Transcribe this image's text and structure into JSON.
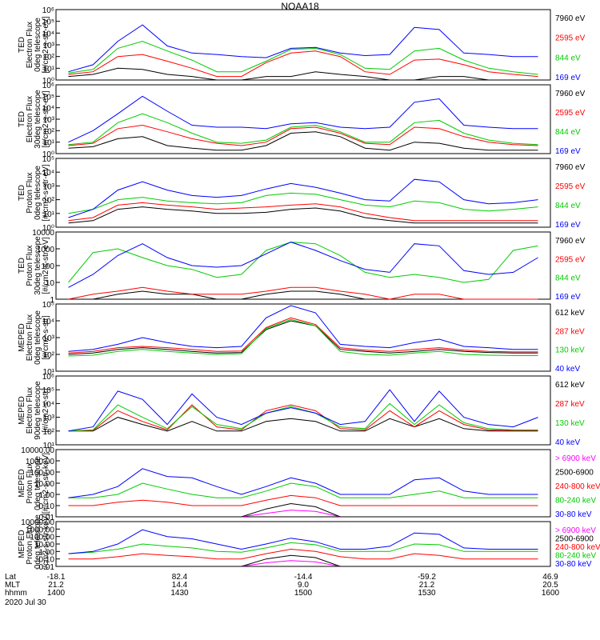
{
  "title": "NOAA18",
  "date_label": "2020 Jul 30",
  "bottom_axis": {
    "row_labels": [
      "Lat",
      "MLT",
      "hhmm"
    ],
    "ticks": [
      {
        "lat": "-18.1",
        "mlt": "21.2",
        "hhmm": "1400"
      },
      {
        "lat": "82.4",
        "mlt": "14.4",
        "hhmm": "1430"
      },
      {
        "lat": "-14.4",
        "mlt": "9.0",
        "hhmm": "1500"
      },
      {
        "lat": "-59.2",
        "mlt": "21.2",
        "hhmm": "1530"
      },
      {
        "lat": "46.9",
        "mlt": "20.5",
        "hhmm": "1600"
      }
    ]
  },
  "colors": {
    "black": "#000000",
    "red": "#ff0000",
    "green": "#00cc00",
    "blue": "#0000ff",
    "magenta": "#ff00ff"
  },
  "chart_data": [
    {
      "type": "line",
      "ylabel": [
        "TED",
        "Electron Flux",
        "0deg telescope",
        "[#/cm2-s-str-eV]"
      ],
      "yscale": "log",
      "ylim": [
        1,
        1000000
      ],
      "yticks": [
        "10⁰",
        "10¹",
        "10²",
        "10³",
        "10⁴",
        "10⁵",
        "10⁶"
      ],
      "series": [
        {
          "name": "7960 eV",
          "color": "black",
          "values": [
            2,
            3,
            10,
            8,
            3,
            2,
            1,
            1,
            2,
            2,
            5,
            3,
            2,
            1,
            1,
            2,
            2,
            1,
            1,
            1
          ]
        },
        {
          "name": "2595 eV",
          "color": "red",
          "values": [
            3,
            5,
            100,
            150,
            40,
            10,
            2,
            2,
            30,
            200,
            300,
            100,
            5,
            3,
            50,
            60,
            20,
            5,
            3,
            2
          ]
        },
        {
          "name": "844 eV",
          "color": "green",
          "values": [
            4,
            8,
            500,
            2000,
            300,
            50,
            5,
            5,
            40,
            400,
            500,
            150,
            10,
            8,
            300,
            500,
            50,
            10,
            5,
            3
          ]
        },
        {
          "name": "169 eV",
          "color": "blue",
          "values": [
            5,
            20,
            2000,
            50000,
            800,
            200,
            150,
            100,
            80,
            500,
            600,
            200,
            120,
            150,
            30000,
            20000,
            200,
            150,
            100,
            100
          ]
        }
      ]
    },
    {
      "type": "line",
      "ylabel": [
        "TED",
        "Electron Flux",
        "30deg telescope",
        "[#/cm2-s-str-eV]"
      ],
      "yscale": "log",
      "ylim": [
        1,
        1000000
      ],
      "yticks": [
        "10⁰",
        "10¹",
        "10²",
        "10³",
        "10⁴",
        "10⁵",
        "10⁶"
      ],
      "series": [
        {
          "name": "7960 eV",
          "color": "black",
          "values": [
            3,
            4,
            20,
            30,
            5,
            3,
            2,
            2,
            5,
            60,
            80,
            30,
            3,
            2,
            10,
            8,
            3,
            2,
            2,
            2
          ]
        },
        {
          "name": "2595 eV",
          "color": "red",
          "values": [
            5,
            8,
            150,
            300,
            80,
            20,
            8,
            5,
            10,
            150,
            200,
            60,
            8,
            6,
            200,
            150,
            30,
            10,
            6,
            5
          ]
        },
        {
          "name": "844 eV",
          "color": "green",
          "values": [
            6,
            10,
            500,
            3000,
            500,
            60,
            10,
            8,
            15,
            200,
            300,
            80,
            10,
            10,
            500,
            800,
            60,
            15,
            8,
            6
          ]
        },
        {
          "name": "169 eV",
          "color": "blue",
          "values": [
            10,
            100,
            3000,
            100000,
            5000,
            300,
            200,
            200,
            150,
            400,
            500,
            200,
            150,
            200,
            30000,
            60000,
            300,
            200,
            150,
            150
          ]
        }
      ]
    },
    {
      "type": "line",
      "ylabel": [
        "TED",
        "Proton Flux",
        "0deg telescope",
        "[#/cm2-s-str-eV]"
      ],
      "yscale": "log",
      "ylim": [
        1,
        100000
      ],
      "yticks": [
        "10⁰",
        "10¹",
        "10²",
        "10³",
        "10⁴",
        "10⁵"
      ],
      "series": [
        {
          "name": "7960 eV",
          "color": "black",
          "values": [
            2,
            3,
            20,
            30,
            20,
            15,
            10,
            10,
            12,
            20,
            25,
            15,
            5,
            3,
            2,
            2,
            2,
            2,
            2,
            2
          ]
        },
        {
          "name": "2595 eV",
          "color": "red",
          "values": [
            3,
            5,
            40,
            60,
            40,
            30,
            20,
            25,
            30,
            40,
            50,
            30,
            10,
            5,
            3,
            3,
            3,
            3,
            3,
            3
          ]
        },
        {
          "name": "844 eV",
          "color": "green",
          "values": [
            10,
            20,
            100,
            150,
            80,
            60,
            50,
            60,
            200,
            300,
            250,
            100,
            40,
            30,
            80,
            60,
            20,
            15,
            20,
            30
          ]
        },
        {
          "name": "169 eV",
          "color": "blue",
          "values": [
            5,
            20,
            500,
            2000,
            500,
            200,
            150,
            200,
            600,
            1500,
            800,
            300,
            100,
            80,
            3000,
            2000,
            100,
            50,
            60,
            100
          ]
        }
      ]
    },
    {
      "type": "line",
      "ylabel": [
        "TED",
        "Proton Flux",
        "30deg telescope",
        "[#/cm2-s-str-eV]"
      ],
      "yscale": "log",
      "ylim": [
        1,
        10000
      ],
      "yticks": [
        "1",
        "10",
        "100",
        "1000",
        "10000"
      ],
      "series": [
        {
          "name": "7960 eV",
          "color": "black",
          "values": [
            1,
            1,
            2,
            3,
            2,
            2,
            1,
            1,
            2,
            3,
            3,
            2,
            1,
            1,
            1,
            1,
            1,
            1,
            1,
            1
          ]
        },
        {
          "name": "2595 eV",
          "color": "red",
          "values": [
            1,
            2,
            3,
            5,
            3,
            2,
            2,
            2,
            3,
            5,
            5,
            3,
            2,
            1,
            2,
            2,
            1,
            1,
            1,
            1
          ]
        },
        {
          "name": "844 eV",
          "color": "green",
          "values": [
            10,
            600,
            1000,
            300,
            100,
            60,
            20,
            30,
            800,
            2500,
            2000,
            400,
            40,
            20,
            30,
            20,
            10,
            15,
            800,
            1500
          ]
        },
        {
          "name": "169 eV",
          "color": "blue",
          "values": [
            5,
            30,
            400,
            2000,
            300,
            100,
            80,
            100,
            500,
            2500,
            800,
            200,
            60,
            40,
            2000,
            1500,
            50,
            30,
            40,
            300
          ]
        }
      ]
    },
    {
      "type": "line",
      "ylabel": [
        "MEPED",
        "Electron Flux",
        "0deg telescope",
        "[#/cm2-s-str]"
      ],
      "yscale": "log",
      "ylim": [
        10,
        100000
      ],
      "yticks": [
        "10¹",
        "10²",
        "10³",
        "10⁴",
        "10⁵"
      ],
      "series": [
        {
          "name": "612 keV",
          "color": "black",
          "values": [
            100,
            120,
            200,
            250,
            200,
            150,
            120,
            130,
            3000,
            10000,
            5000,
            200,
            150,
            120,
            150,
            200,
            150,
            130,
            120,
            120
          ]
        },
        {
          "name": "287 keV",
          "color": "red",
          "values": [
            120,
            150,
            250,
            300,
            250,
            200,
            150,
            160,
            4000,
            15000,
            6000,
            250,
            180,
            150,
            200,
            250,
            180,
            150,
            140,
            140
          ]
        },
        {
          "name": "130 keV",
          "color": "green",
          "values": [
            80,
            90,
            150,
            200,
            150,
            120,
            100,
            110,
            3500,
            12000,
            5000,
            150,
            100,
            90,
            120,
            150,
            100,
            90,
            85,
            85
          ]
        },
        {
          "name": "40 keV",
          "color": "blue",
          "values": [
            150,
            200,
            400,
            1000,
            500,
            300,
            250,
            300,
            15000,
            80000,
            30000,
            400,
            300,
            250,
            500,
            800,
            300,
            250,
            200,
            200
          ]
        }
      ]
    },
    {
      "type": "line",
      "ylabel": [
        "MEPED",
        "Electron Flux",
        "90deg telescope",
        "[#/cm2-s-str]"
      ],
      "yscale": "log",
      "ylim": [
        10,
        1000000
      ],
      "yticks": [
        "10¹",
        "10²",
        "10³",
        "10⁴",
        "10⁵",
        "10⁶"
      ],
      "series": [
        {
          "name": "612 keV",
          "color": "black",
          "values": [
            100,
            100,
            1000,
            300,
            100,
            500,
            100,
            100,
            500,
            800,
            500,
            100,
            100,
            800,
            200,
            800,
            150,
            100,
            100,
            100
          ]
        },
        {
          "name": "287 keV",
          "color": "red",
          "values": [
            100,
            110,
            3000,
            500,
            120,
            8000,
            200,
            120,
            3000,
            8000,
            3000,
            150,
            120,
            3000,
            200,
            3000,
            300,
            120,
            110,
            110
          ]
        },
        {
          "name": "130 keV",
          "color": "green",
          "values": [
            100,
            120,
            8000,
            1000,
            150,
            6000,
            300,
            150,
            2000,
            6000,
            2000,
            200,
            150,
            10000,
            300,
            8000,
            400,
            150,
            120,
            120
          ]
        },
        {
          "name": "40 keV",
          "color": "blue",
          "values": [
            100,
            200,
            80000,
            20000,
            300,
            50000,
            1000,
            300,
            2000,
            5000,
            2000,
            300,
            500,
            100000,
            500,
            80000,
            1000,
            300,
            200,
            1000
          ]
        }
      ]
    },
    {
      "type": "line",
      "ylabel": [
        "MEPED",
        "Proton Flux",
        "0deg telescope",
        "[#/cm2-s-str-keV]"
      ],
      "yscale": "log",
      "ylim": [
        0.01,
        10000
      ],
      "yticks": [
        "0.01",
        "0.10",
        "1.00",
        "10.00",
        "100.00",
        "1000.00",
        "10000.00"
      ],
      "series": [
        {
          "name": "> 6900 keV",
          "color": "magenta",
          "values": [
            0.01,
            0.01,
            0.01,
            0.01,
            0.01,
            0.01,
            0.01,
            0.01,
            0.02,
            0.04,
            0.03,
            0.01,
            0.01,
            0.01,
            0.01,
            0.01,
            0.01,
            0.01,
            0.01,
            0.01
          ]
        },
        {
          "name": "2500-6900",
          "color": "black",
          "values": [
            0.01,
            0.01,
            0.01,
            0.01,
            0.01,
            0.01,
            0.01,
            0.01,
            0.05,
            0.15,
            0.08,
            0.01,
            0.01,
            0.01,
            0.01,
            0.01,
            0.01,
            0.01,
            0.01,
            0.01
          ]
        },
        {
          "name": "240-800 keV",
          "color": "red",
          "values": [
            0.1,
            0.1,
            0.2,
            0.3,
            0.2,
            0.1,
            0.1,
            0.1,
            0.3,
            0.8,
            0.5,
            0.1,
            0.1,
            0.1,
            0.1,
            0.1,
            0.1,
            0.1,
            0.1,
            0.1
          ]
        },
        {
          "name": "80-240 keV",
          "color": "green",
          "values": [
            0.5,
            0.5,
            1,
            10,
            3,
            1,
            0.5,
            0.5,
            2,
            10,
            5,
            0.5,
            0.5,
            0.5,
            1,
            2,
            0.5,
            0.5,
            0.5,
            0.5
          ]
        },
        {
          "name": "30-80 keV",
          "color": "blue",
          "values": [
            0.5,
            1,
            5,
            200,
            40,
            30,
            5,
            1,
            5,
            30,
            10,
            1,
            1,
            1,
            20,
            30,
            2,
            1,
            1,
            1
          ]
        }
      ]
    },
    {
      "type": "line",
      "ylabel": [
        "MEPED",
        "Proton Flux",
        "90deg telescope",
        "[#/cm2-s-str-keV]"
      ],
      "yscale": "log",
      "ylim": [
        0.01,
        10000
      ],
      "yticks": [
        "0.01",
        "0.10",
        "1.00",
        "10.00",
        "100.00",
        "1000.00",
        "10000.00"
      ],
      "series": [
        {
          "name": "> 6900 keV",
          "color": "magenta",
          "values": [
            0.01,
            0.01,
            0.01,
            0.01,
            0.01,
            0.01,
            0.01,
            0.01,
            0.03,
            0.06,
            0.04,
            0.01,
            0.01,
            0.01,
            0.01,
            0.01,
            0.01,
            0.01,
            0.01,
            0.01
          ]
        },
        {
          "name": "2500-6900",
          "color": "black",
          "values": [
            0.01,
            0.01,
            0.01,
            0.01,
            0.01,
            0.01,
            0.01,
            0.01,
            0.1,
            0.3,
            0.15,
            0.01,
            0.01,
            0.01,
            0.01,
            0.01,
            0.01,
            0.01,
            0.01,
            0.01
          ]
        },
        {
          "name": "240-800 keV",
          "color": "red",
          "values": [
            0.1,
            0.1,
            0.2,
            0.5,
            0.3,
            0.2,
            0.1,
            0.1,
            0.5,
            2,
            1,
            0.2,
            0.1,
            0.1,
            0.5,
            0.3,
            0.1,
            0.1,
            0.1,
            0.1
          ]
        },
        {
          "name": "80-240 keV",
          "color": "green",
          "values": [
            0.5,
            0.8,
            2,
            10,
            5,
            3,
            1,
            0.8,
            3,
            15,
            8,
            1,
            1,
            1,
            10,
            8,
            1,
            1,
            1,
            1
          ]
        },
        {
          "name": "30-80 keV",
          "color": "blue",
          "values": [
            0.5,
            1,
            10,
            800,
            100,
            50,
            10,
            2,
            10,
            60,
            20,
            2,
            2,
            5,
            300,
            200,
            3,
            2,
            2,
            2
          ]
        }
      ]
    }
  ]
}
